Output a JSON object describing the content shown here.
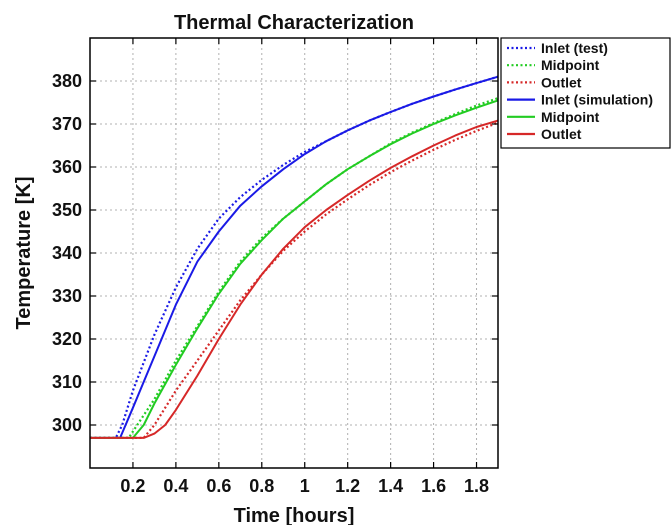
{
  "chart_data": {
    "type": "line",
    "title": "Thermal Characterization",
    "xlabel": "Time [hours]",
    "ylabel": "Temperature [K]",
    "xlim": [
      0,
      1.9
    ],
    "ylim": [
      290,
      390
    ],
    "xticks": [
      0.2,
      0.4,
      0.6,
      0.8,
      1,
      1.2,
      1.4,
      1.6,
      1.8
    ],
    "yticks": [
      300,
      310,
      320,
      330,
      340,
      350,
      360,
      370,
      380
    ],
    "grid": true,
    "legend_position": "right, outside plot",
    "series": [
      {
        "name": "Inlet (test)",
        "color": "#1a1ae6",
        "dash": "dotted",
        "x": [
          0,
          0.12,
          0.15,
          0.2,
          0.3,
          0.4,
          0.5,
          0.6,
          0.7,
          0.8,
          0.9,
          1.0,
          1.1,
          1.2,
          1.3,
          1.4,
          1.5,
          1.6,
          1.7,
          1.8,
          1.9
        ],
        "y": [
          297,
          297,
          300,
          308,
          321,
          332,
          341,
          348,
          353,
          357,
          360.5,
          363.5,
          366,
          368.5,
          370.8,
          372.8,
          374.7,
          376.4,
          378,
          379.5,
          381
        ]
      },
      {
        "name": "Midpoint",
        "color": "#22cc22",
        "dash": "dotted",
        "x": [
          0,
          0.18,
          0.22,
          0.3,
          0.4,
          0.5,
          0.6,
          0.7,
          0.8,
          0.9,
          1.0,
          1.1,
          1.2,
          1.3,
          1.4,
          1.5,
          1.6,
          1.7,
          1.8,
          1.9
        ],
        "y": [
          297,
          297,
          300,
          306,
          315,
          323,
          331,
          338,
          343.5,
          348,
          352,
          356,
          359.5,
          362.5,
          365.5,
          368,
          370.2,
          372.3,
          374.3,
          376
        ]
      },
      {
        "name": "Outlet",
        "color": "#d62828",
        "dash": "dotted",
        "x": [
          0,
          0.25,
          0.3,
          0.4,
          0.5,
          0.6,
          0.7,
          0.8,
          0.9,
          1.0,
          1.1,
          1.2,
          1.3,
          1.4,
          1.5,
          1.6,
          1.7,
          1.8,
          1.9
        ],
        "y": [
          297,
          297,
          300,
          308,
          315,
          322,
          329,
          335,
          340.5,
          345,
          349,
          352.5,
          355.8,
          358.8,
          361.5,
          364,
          366.3,
          368.4,
          370.3
        ]
      },
      {
        "name": "Inlet (simulation)",
        "color": "#1a1ae6",
        "dash": "solid",
        "x": [
          0,
          0.14,
          0.2,
          0.3,
          0.4,
          0.5,
          0.6,
          0.7,
          0.8,
          0.9,
          1.0,
          1.1,
          1.2,
          1.3,
          1.4,
          1.5,
          1.6,
          1.7,
          1.8,
          1.9
        ],
        "y": [
          297,
          297,
          304,
          316,
          328,
          338,
          345,
          351,
          355.5,
          359.5,
          363,
          366,
          368.5,
          370.8,
          372.8,
          374.7,
          376.4,
          378,
          379.5,
          381
        ]
      },
      {
        "name": "Midpoint",
        "color": "#22cc22",
        "dash": "solid",
        "x": [
          0,
          0.2,
          0.25,
          0.3,
          0.4,
          0.5,
          0.6,
          0.7,
          0.8,
          0.9,
          1.0,
          1.1,
          1.2,
          1.3,
          1.4,
          1.5,
          1.6,
          1.7,
          1.8,
          1.9
        ],
        "y": [
          297,
          297,
          300,
          305,
          314,
          322.5,
          330.5,
          337.5,
          343,
          348,
          352,
          356,
          359.5,
          362.5,
          365.3,
          367.8,
          370,
          372,
          373.8,
          375.5
        ]
      },
      {
        "name": "Outlet",
        "color": "#d62828",
        "dash": "solid",
        "x": [
          0,
          0.25,
          0.3,
          0.35,
          0.4,
          0.5,
          0.6,
          0.7,
          0.8,
          0.9,
          1.0,
          1.1,
          1.2,
          1.3,
          1.4,
          1.5,
          1.6,
          1.7,
          1.8,
          1.9
        ],
        "y": [
          297,
          297,
          298,
          300,
          303.5,
          311.5,
          320,
          328,
          335,
          341,
          346,
          350,
          353.5,
          356.8,
          359.8,
          362.5,
          365,
          367.3,
          369.3,
          370.8
        ]
      }
    ]
  }
}
